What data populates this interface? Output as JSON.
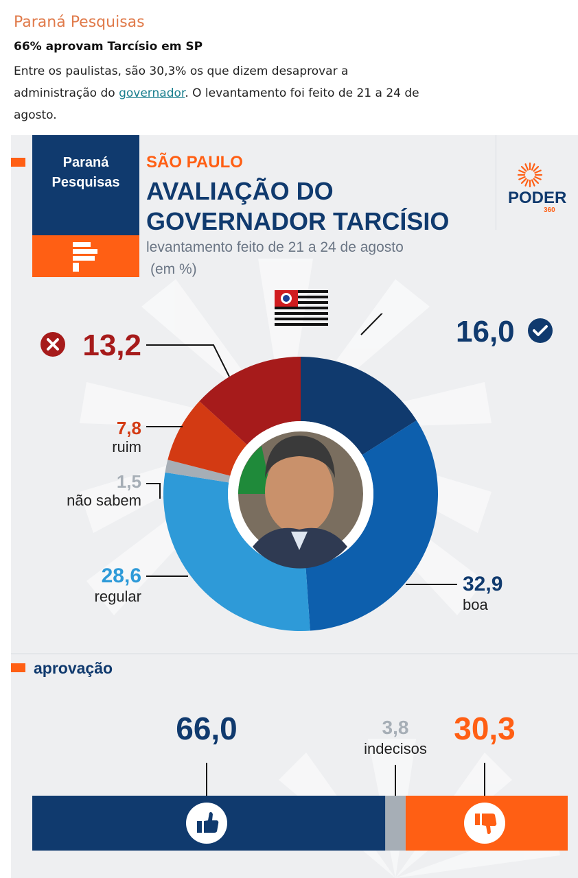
{
  "article": {
    "source": "Paraná Pesquisas",
    "headline": "66% aprovam Tarcísio em SP",
    "body_before": "Entre os paulistas, são 30,3% os que dizem desaprovar a administração do ",
    "body_link": "governador",
    "body_after": ". O levantamento foi feito de 21 a 24 de agosto."
  },
  "infographic": {
    "pollster_line1": "Paraná",
    "pollster_line2": "Pesquisas",
    "state": "SÃO PAULO",
    "title_line1": "AVALIAÇÃO DO",
    "title_line2": "GOVERNADOR TARCÍSIO",
    "subtitle_line1": "levantamento feito de 21 a 24 de agosto",
    "subtitle_line2": "(em %)",
    "brand": "PODER",
    "brand_number": "360",
    "approval_title": "aprovação"
  },
  "chart_data": [
    {
      "type": "pie",
      "title": "AVALIAÇÃO DO GOVERNADOR TARCÍSIO",
      "slices": [
        {
          "label": "",
          "value": 16.0,
          "display": "16,0",
          "color": "#103a6e",
          "icon": "check-circle-icon"
        },
        {
          "label": "boa",
          "value": 32.9,
          "display": "32,9",
          "color": "#0d5fad"
        },
        {
          "label": "regular",
          "value": 28.6,
          "display": "28,6",
          "color": "#2e9ad8"
        },
        {
          "label": "não sabem",
          "value": 1.5,
          "display": "1,5",
          "color": "#a6aeb6"
        },
        {
          "label": "ruim",
          "value": 7.8,
          "display": "7,8",
          "color": "#d33a13"
        },
        {
          "label": "",
          "value": 13.2,
          "display": "13,2",
          "color": "#a61b1b",
          "icon": "x-circle-icon"
        }
      ]
    },
    {
      "type": "bar",
      "title": "aprovação",
      "orientation": "horizontal-stacked",
      "segments": [
        {
          "label": "",
          "value": 66.0,
          "display": "66,0",
          "color": "#103a6e",
          "icon": "thumbs-up-icon"
        },
        {
          "label": "indecisos",
          "value": 3.8,
          "display": "3,8",
          "color": "#a6aeb6"
        },
        {
          "label": "",
          "value": 30.3,
          "display": "30,3",
          "color": "#ff5f14",
          "icon": "thumbs-down-icon"
        }
      ]
    }
  ]
}
